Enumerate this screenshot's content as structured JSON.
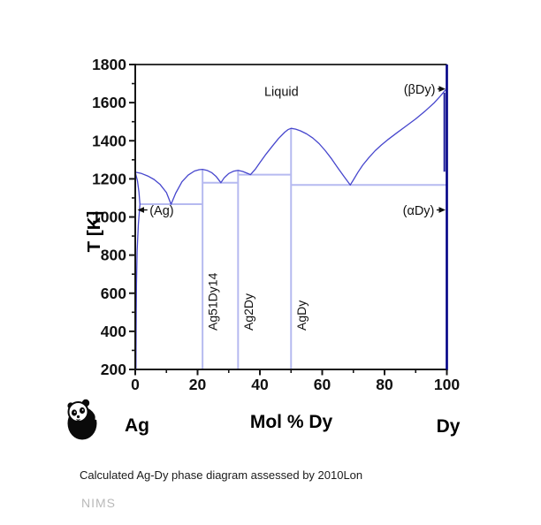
{
  "chart_data": {
    "type": "line",
    "title": "",
    "xlabel": "Mol % Dy",
    "ylabel": "T [K]",
    "xlim": [
      0,
      100
    ],
    "ylim": [
      200,
      1800
    ],
    "grid": false,
    "x_major_ticks": [
      0,
      20,
      40,
      60,
      80,
      100
    ],
    "x_minor_ticks": [
      10,
      30,
      50,
      70,
      90
    ],
    "y_major_ticks": [
      1800,
      1600,
      1400,
      1200,
      1000,
      800,
      600,
      400,
      200
    ],
    "y_minor_ticks": [
      1700,
      1500,
      1300,
      1100,
      900,
      700,
      500,
      300
    ],
    "series": [
      {
        "name": "liquidus",
        "style": "curve",
        "points": [
          [
            0,
            1235
          ],
          [
            2,
            1228
          ],
          [
            4,
            1215
          ],
          [
            6,
            1197
          ],
          [
            8,
            1170
          ],
          [
            10,
            1128
          ],
          [
            11.5,
            1067
          ],
          [
            13,
            1125
          ],
          [
            15,
            1185
          ],
          [
            17,
            1220
          ],
          [
            19,
            1241
          ],
          [
            20.5,
            1248
          ],
          [
            21.6,
            1250
          ],
          [
            23,
            1245
          ],
          [
            24.5,
            1233
          ],
          [
            26,
            1212
          ],
          [
            27.5,
            1180
          ],
          [
            28.5,
            1205
          ],
          [
            30,
            1228
          ],
          [
            31.5,
            1240
          ],
          [
            33,
            1245
          ],
          [
            34.5,
            1239
          ],
          [
            36,
            1229
          ],
          [
            37,
            1222
          ],
          [
            38.5,
            1250
          ],
          [
            40,
            1285
          ],
          [
            42,
            1330
          ],
          [
            44,
            1372
          ],
          [
            46,
            1412
          ],
          [
            48,
            1445
          ],
          [
            49,
            1458
          ],
          [
            50,
            1465
          ],
          [
            51.5,
            1461
          ],
          [
            53,
            1452
          ],
          [
            55,
            1436
          ],
          [
            57,
            1414
          ],
          [
            59,
            1385
          ],
          [
            61,
            1348
          ],
          [
            63,
            1305
          ],
          [
            65,
            1258
          ],
          [
            67,
            1212
          ],
          [
            68,
            1190
          ],
          [
            69,
            1168
          ],
          [
            70,
            1195
          ],
          [
            71.5,
            1235
          ],
          [
            73,
            1272
          ],
          [
            75,
            1312
          ],
          [
            77,
            1348
          ],
          [
            79,
            1378
          ],
          [
            81,
            1405
          ],
          [
            84,
            1442
          ],
          [
            87,
            1478
          ],
          [
            90,
            1515
          ],
          [
            93,
            1555
          ],
          [
            96,
            1600
          ],
          [
            98,
            1636
          ],
          [
            99.6,
            1668
          ]
        ]
      },
      {
        "name": "ag-solidus",
        "style": "curve",
        "points": [
          [
            0,
            1235
          ],
          [
            0.7,
            1190
          ],
          [
            1.2,
            1130
          ],
          [
            1.5,
            1067
          ]
        ]
      },
      {
        "name": "ag-solvus",
        "style": "curve",
        "points": [
          [
            1.5,
            1067
          ],
          [
            1.0,
            960
          ],
          [
            0.6,
            820
          ],
          [
            0.4,
            650
          ],
          [
            0.3,
            480
          ],
          [
            0.25,
            300
          ],
          [
            0.22,
            200
          ]
        ]
      },
      {
        "name": "dy-solvus",
        "style": "dark",
        "points": [
          [
            99.2,
            1652
          ],
          [
            99.2,
            1238
          ]
        ]
      }
    ],
    "invariant_lines": [
      {
        "T": 1067,
        "x1": 1.5,
        "x2": 21.6
      },
      {
        "T": 1180,
        "x1": 21.6,
        "x2": 33
      },
      {
        "T": 1222,
        "x1": 33,
        "x2": 50
      },
      {
        "T": 1168,
        "x1": 50,
        "x2": 100
      }
    ],
    "invariant_points": [
      {
        "name": "eutectic-Ag-Ag51Dy14",
        "mol": 11.5,
        "T": 1067
      },
      {
        "name": "eutectic-Ag51Dy14-Ag2Dy",
        "mol": 27.5,
        "T": 1180
      },
      {
        "name": "eutectic-Ag2Dy-AgDy",
        "mol": 37,
        "T": 1222
      },
      {
        "name": "eutectic-AgDy-Dy",
        "mol": 69,
        "T": 1168
      },
      {
        "name": "Ag-melting",
        "mol": 0,
        "T": 1235
      },
      {
        "name": "AgDy-congruent-melting",
        "mol": 50,
        "T": 1465
      },
      {
        "name": "Dy-melting",
        "mol": 100,
        "T": 1675
      }
    ],
    "compound_lines": [
      {
        "label": "Ag51Dy14",
        "x": 21.6,
        "T_top": 1250
      },
      {
        "label": "Ag2Dy",
        "x": 33,
        "T_top": 1245
      },
      {
        "label": "AgDy",
        "x": 50,
        "T_top": 1465
      }
    ],
    "annotations": [
      {
        "text": "Liquid",
        "mol": 46.9,
        "T": 1661,
        "anchor": "middle",
        "arrow": ""
      },
      {
        "text": "(Ag)",
        "mol": 4.6,
        "T": 1037,
        "anchor": "start",
        "arrow": "left"
      },
      {
        "text": "(βDy)",
        "mol": 96.3,
        "T": 1672,
        "anchor": "end",
        "arrow": "right"
      },
      {
        "text": "(αDy)",
        "mol": 96.0,
        "T": 1037,
        "anchor": "end",
        "arrow": "right"
      }
    ],
    "legend": "none"
  },
  "footer": {
    "left_element": "Ag",
    "right_element": "Dy"
  },
  "caption": {
    "text": "Calculated Ag-Dy phase diagram assessed by 2010Lon",
    "watermark": "NIMS"
  },
  "colors": {
    "curve": "#4646cd",
    "invariant_line": "#b6baf0",
    "solvus_dark": "#1c1c99",
    "axis": "#161616",
    "right_axis": "#000085",
    "text": "#111111",
    "watermark": "#b9b9b9"
  }
}
